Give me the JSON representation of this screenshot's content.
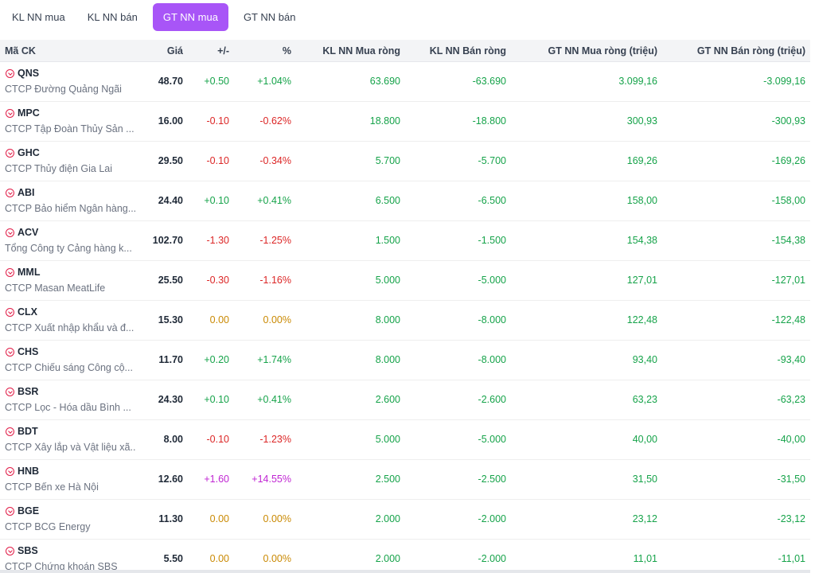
{
  "tabs": [
    {
      "label": "KL NN mua",
      "active": false
    },
    {
      "label": "KL NN bán",
      "active": false
    },
    {
      "label": "GT NN mua",
      "active": true
    },
    {
      "label": "GT NN bán",
      "active": false
    }
  ],
  "colors": {
    "accent": "#a855f7",
    "up": "#16a34a",
    "down": "#dc2626",
    "reference": "#ca8a04",
    "ceiling": "#c026d3"
  },
  "columns": {
    "symbol": "Mã CK",
    "price": "Giá",
    "change": "+/-",
    "percent": "%",
    "kl_buy": "KL NN Mua ròng",
    "kl_sell": "KL NN Bán ròng",
    "gt_buy": "GT NN Mua ròng (triệu)",
    "gt_sell": "GT NN Bán ròng (triệu)"
  },
  "rows": [
    {
      "symbol": "QNS",
      "name": "CTCP Đường Quảng Ngãi",
      "price": "48.70",
      "change": "+0.50",
      "percent": "+1.04%",
      "trend": "up",
      "kl_buy": "63.690",
      "kl_sell": "-63.690",
      "gt_buy": "3.099,16",
      "gt_sell": "-3.099,16"
    },
    {
      "symbol": "MPC",
      "name": "CTCP Tập Đoàn Thủy Sản ...",
      "price": "16.00",
      "change": "-0.10",
      "percent": "-0.62%",
      "trend": "down",
      "kl_buy": "18.800",
      "kl_sell": "-18.800",
      "gt_buy": "300,93",
      "gt_sell": "-300,93"
    },
    {
      "symbol": "GHC",
      "name": "CTCP Thủy điện Gia Lai",
      "price": "29.50",
      "change": "-0.10",
      "percent": "-0.34%",
      "trend": "down",
      "kl_buy": "5.700",
      "kl_sell": "-5.700",
      "gt_buy": "169,26",
      "gt_sell": "-169,26"
    },
    {
      "symbol": "ABI",
      "name": "CTCP Bảo hiểm Ngân hàng...",
      "price": "24.40",
      "change": "+0.10",
      "percent": "+0.41%",
      "trend": "up",
      "kl_buy": "6.500",
      "kl_sell": "-6.500",
      "gt_buy": "158,00",
      "gt_sell": "-158,00"
    },
    {
      "symbol": "ACV",
      "name": "Tổng Công ty Cảng hàng k...",
      "price": "102.70",
      "change": "-1.30",
      "percent": "-1.25%",
      "trend": "down",
      "kl_buy": "1.500",
      "kl_sell": "-1.500",
      "gt_buy": "154,38",
      "gt_sell": "-154,38"
    },
    {
      "symbol": "MML",
      "name": "CTCP Masan MeatLife",
      "price": "25.50",
      "change": "-0.30",
      "percent": "-1.16%",
      "trend": "down",
      "kl_buy": "5.000",
      "kl_sell": "-5.000",
      "gt_buy": "127,01",
      "gt_sell": "-127,01"
    },
    {
      "symbol": "CLX",
      "name": "CTCP Xuất nhập khẩu và đ...",
      "price": "15.30",
      "change": "0.00",
      "percent": "0.00%",
      "trend": "ref",
      "kl_buy": "8.000",
      "kl_sell": "-8.000",
      "gt_buy": "122,48",
      "gt_sell": "-122,48"
    },
    {
      "symbol": "CHS",
      "name": "CTCP Chiếu sáng Công cộ...",
      "price": "11.70",
      "change": "+0.20",
      "percent": "+1.74%",
      "trend": "up",
      "kl_buy": "8.000",
      "kl_sell": "-8.000",
      "gt_buy": "93,40",
      "gt_sell": "-93,40"
    },
    {
      "symbol": "BSR",
      "name": "CTCP Lọc - Hóa dầu Bình ...",
      "price": "24.30",
      "change": "+0.10",
      "percent": "+0.41%",
      "trend": "up",
      "kl_buy": "2.600",
      "kl_sell": "-2.600",
      "gt_buy": "63,23",
      "gt_sell": "-63,23"
    },
    {
      "symbol": "BDT",
      "name": "CTCP Xây lắp và Vật liệu xã...",
      "price": "8.00",
      "change": "-0.10",
      "percent": "-1.23%",
      "trend": "down",
      "kl_buy": "5.000",
      "kl_sell": "-5.000",
      "gt_buy": "40,00",
      "gt_sell": "-40,00"
    },
    {
      "symbol": "HNB",
      "name": "CTCP Bến xe Hà Nội",
      "price": "12.60",
      "change": "+1.60",
      "percent": "+14.55%",
      "trend": "ceil",
      "kl_buy": "2.500",
      "kl_sell": "-2.500",
      "gt_buy": "31,50",
      "gt_sell": "-31,50"
    },
    {
      "symbol": "BGE",
      "name": "CTCP BCG Energy",
      "price": "11.30",
      "change": "0.00",
      "percent": "0.00%",
      "trend": "ref",
      "kl_buy": "2.000",
      "kl_sell": "-2.000",
      "gt_buy": "23,12",
      "gt_sell": "-23,12"
    },
    {
      "symbol": "SBS",
      "name": "CTCP Chứng khoán SBS",
      "price": "5.50",
      "change": "0.00",
      "percent": "0.00%",
      "trend": "ref",
      "kl_buy": "2.000",
      "kl_sell": "-2.000",
      "gt_buy": "11,01",
      "gt_sell": "-11,01"
    }
  ]
}
